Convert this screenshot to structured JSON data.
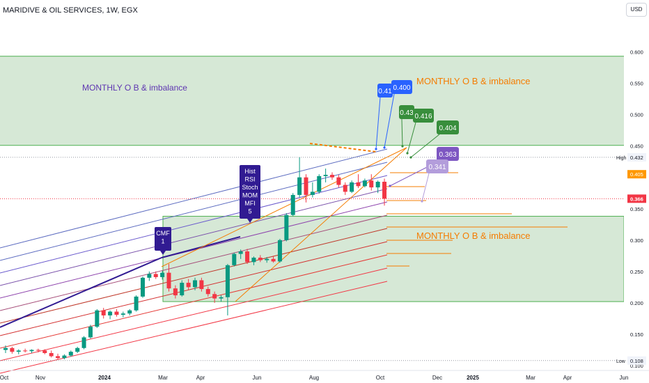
{
  "header": {
    "title": "MARIDIVE & OIL SERVICES, 1W, EGX",
    "currency": "USD"
  },
  "colors": {
    "up": "#089981",
    "down": "#f23645",
    "zone_fill": "#c8e0c8",
    "zone_border": "#4caf50",
    "purple": "#7e57c2",
    "orange": "#f57c00",
    "blue_label": "#2962ff",
    "green_label": "#388e3c",
    "price_red": "#f23645"
  },
  "chart_data": {
    "type": "candlestick",
    "title": "MARIDIVE & OIL SERVICES, 1W, EGX",
    "y_ticks": [
      "0.600",
      "0.550",
      "0.500",
      "0.450",
      "0.350",
      "0.300",
      "0.250",
      "0.200",
      "0.150",
      "0.100"
    ],
    "ylim": [
      0.09,
      0.615
    ],
    "x_ticks": [
      "Oct",
      "Nov",
      "2024",
      "Mar",
      "Apr",
      "Jun",
      "Aug",
      "Oct",
      "Dec",
      "2025",
      "Mar",
      "Apr",
      "Jun"
    ],
    "candles": [
      [
        0.125,
        0.132,
        0.12,
        0.128
      ],
      [
        0.128,
        0.13,
        0.119,
        0.122
      ],
      [
        0.122,
        0.126,
        0.118,
        0.124
      ],
      [
        0.124,
        0.127,
        0.121,
        0.123
      ],
      [
        0.123,
        0.126,
        0.12,
        0.125
      ],
      [
        0.125,
        0.127,
        0.121,
        0.124
      ],
      [
        0.124,
        0.126,
        0.118,
        0.12
      ],
      [
        0.12,
        0.124,
        0.113,
        0.115
      ],
      [
        0.115,
        0.119,
        0.11,
        0.112
      ],
      [
        0.112,
        0.118,
        0.11,
        0.116
      ],
      [
        0.116,
        0.124,
        0.114,
        0.122
      ],
      [
        0.122,
        0.13,
        0.12,
        0.128
      ],
      [
        0.128,
        0.147,
        0.126,
        0.145
      ],
      [
        0.145,
        0.165,
        0.143,
        0.162
      ],
      [
        0.162,
        0.19,
        0.16,
        0.188
      ],
      [
        0.188,
        0.192,
        0.175,
        0.18
      ],
      [
        0.18,
        0.188,
        0.174,
        0.186
      ],
      [
        0.186,
        0.19,
        0.178,
        0.181
      ],
      [
        0.181,
        0.186,
        0.177,
        0.183
      ],
      [
        0.183,
        0.19,
        0.18,
        0.188
      ],
      [
        0.188,
        0.212,
        0.186,
        0.21
      ],
      [
        0.21,
        0.242,
        0.208,
        0.24
      ],
      [
        0.24,
        0.25,
        0.235,
        0.246
      ],
      [
        0.246,
        0.25,
        0.238,
        0.241
      ],
      [
        0.241,
        0.251,
        0.237,
        0.248
      ],
      [
        0.248,
        0.262,
        0.218,
        0.223
      ],
      [
        0.223,
        0.228,
        0.207,
        0.212
      ],
      [
        0.212,
        0.236,
        0.21,
        0.232
      ],
      [
        0.232,
        0.238,
        0.22,
        0.225
      ],
      [
        0.225,
        0.24,
        0.22,
        0.236
      ],
      [
        0.236,
        0.24,
        0.218,
        0.222
      ],
      [
        0.222,
        0.226,
        0.21,
        0.214
      ],
      [
        0.214,
        0.218,
        0.2,
        0.207
      ],
      [
        0.207,
        0.212,
        0.202,
        0.209
      ],
      [
        0.209,
        0.262,
        0.18,
        0.26
      ],
      [
        0.26,
        0.28,
        0.258,
        0.278
      ],
      [
        0.278,
        0.285,
        0.27,
        0.282
      ],
      [
        0.282,
        0.286,
        0.262,
        0.265
      ],
      [
        0.265,
        0.274,
        0.26,
        0.272
      ],
      [
        0.272,
        0.276,
        0.265,
        0.268
      ],
      [
        0.268,
        0.273,
        0.264,
        0.27
      ],
      [
        0.27,
        0.275,
        0.264,
        0.266
      ],
      [
        0.266,
        0.302,
        0.264,
        0.3
      ],
      [
        0.3,
        0.343,
        0.298,
        0.34
      ],
      [
        0.34,
        0.375,
        0.338,
        0.372
      ],
      [
        0.372,
        0.432,
        0.368,
        0.4
      ],
      [
        0.4,
        0.405,
        0.36,
        0.372
      ],
      [
        0.372,
        0.392,
        0.368,
        0.377
      ],
      [
        0.377,
        0.405,
        0.374,
        0.402
      ],
      [
        0.402,
        0.414,
        0.392,
        0.404
      ],
      [
        0.404,
        0.408,
        0.396,
        0.4
      ],
      [
        0.4,
        0.404,
        0.384,
        0.388
      ],
      [
        0.388,
        0.392,
        0.372,
        0.377
      ],
      [
        0.377,
        0.395,
        0.375,
        0.392
      ],
      [
        0.392,
        0.405,
        0.383,
        0.386
      ],
      [
        0.386,
        0.398,
        0.384,
        0.395
      ],
      [
        0.395,
        0.405,
        0.379,
        0.384
      ],
      [
        0.384,
        0.395,
        0.375,
        0.393
      ],
      [
        0.393,
        0.398,
        0.355,
        0.366
      ]
    ],
    "zones": [
      {
        "label": "MONTHLY  O B & imbalance",
        "top": 0.593,
        "bottom": 0.451
      },
      {
        "label": "MONTHLY  O B & imbalance",
        "top": 0.338,
        "bottom": 0.202
      }
    ],
    "price_labels": {
      "high_label": "High",
      "high": "0.432",
      "pending": "0.405",
      "last": "0.366",
      "low_label": "Low",
      "low": "0.108"
    },
    "callouts": [
      {
        "text": "0.41",
        "color": "#2962ff"
      },
      {
        "text": "0.400",
        "color": "#2962ff"
      },
      {
        "text": "0.43",
        "color": "#388e3c"
      },
      {
        "text": "0.416",
        "color": "#388e3c"
      },
      {
        "text": "0.404",
        "color": "#388e3c"
      },
      {
        "text": "0.363",
        "color": "#7e57c2"
      },
      {
        "text": "0.341",
        "color": "#b39ddb"
      }
    ],
    "indicator_flags": [
      {
        "lines": [
          "CMF",
          "1"
        ]
      },
      {
        "lines": [
          "Hist",
          "RSI",
          "Stoch",
          "MOM",
          "MFI",
          "5"
        ]
      }
    ]
  }
}
